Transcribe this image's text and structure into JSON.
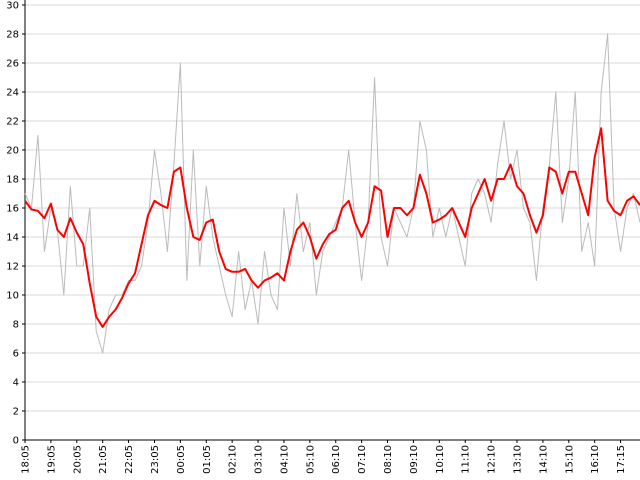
{
  "chart_data": {
    "type": "line",
    "categories": [
      "18:05",
      null,
      null,
      null,
      "19:05",
      null,
      null,
      null,
      "20:05",
      null,
      null,
      null,
      "21:05",
      null,
      null,
      null,
      "22:05",
      null,
      null,
      null,
      "23:05",
      null,
      null,
      null,
      "00:05",
      null,
      null,
      null,
      "01:05",
      null,
      null,
      null,
      "02:10",
      null,
      null,
      null,
      "03:10",
      null,
      null,
      null,
      "04:10",
      null,
      null,
      null,
      "05:10",
      null,
      null,
      null,
      "06:10",
      null,
      null,
      null,
      "07:10",
      null,
      null,
      null,
      "08:10",
      null,
      null,
      null,
      "09:10",
      null,
      null,
      null,
      "10:10",
      null,
      null,
      null,
      "11:10",
      null,
      null,
      null,
      "12:10",
      null,
      null,
      null,
      "13:10",
      null,
      null,
      null,
      "14:10",
      null,
      null,
      null,
      "15:10",
      null,
      null,
      null,
      "16:10",
      null,
      null,
      null,
      "17:15",
      null,
      null,
      null
    ],
    "series": [
      {
        "color": "#bbbbbb",
        "values": [
          17,
          16,
          21,
          13,
          16,
          14.5,
          10,
          17.5,
          12,
          12,
          16,
          7.5,
          6,
          9,
          10,
          10,
          11,
          11,
          12,
          15,
          20,
          17,
          13,
          19,
          26,
          11,
          20,
          12,
          17.5,
          14,
          12,
          10,
          8.5,
          13,
          9,
          11,
          8,
          13,
          10,
          9,
          16,
          12,
          17,
          13,
          15,
          10,
          13,
          14,
          15,
          16,
          20,
          15,
          11,
          15,
          25,
          14,
          12,
          16,
          15,
          14,
          16,
          22,
          20,
          14,
          16,
          14,
          16,
          14,
          12,
          17,
          18,
          17,
          15,
          19,
          22,
          18,
          20,
          16,
          15,
          11,
          16,
          19,
          24,
          15,
          18,
          24,
          13,
          15,
          12,
          24,
          28,
          16,
          13,
          16,
          17,
          15
        ]
      },
      {
        "color": "#ff0000",
        "values": [
          16.5,
          15.9,
          15.8,
          15.3,
          16.3,
          14.5,
          14,
          15.3,
          14.3,
          13.5,
          10.8,
          8.5,
          7.8,
          8.5,
          9,
          9.8,
          10.8,
          11.5,
          13.5,
          15.5,
          16.5,
          16.2,
          16,
          18.5,
          18.8,
          16,
          14,
          13.8,
          15,
          15.2,
          13,
          11.8,
          11.6,
          11.6,
          11.8,
          11,
          10.5,
          11,
          11.2,
          11.5,
          11,
          13,
          14.5,
          15,
          14,
          12.5,
          13.5,
          14.2,
          14.5,
          16,
          16.5,
          15,
          14,
          15,
          17.5,
          17.2,
          14,
          16,
          16,
          15.5,
          16,
          18.3,
          17,
          15,
          15.2,
          15.5,
          16,
          15,
          14,
          16,
          17,
          18,
          16.5,
          18,
          18,
          19,
          17.5,
          17,
          15.5,
          14.3,
          15.5,
          18.8,
          18.5,
          17,
          18.5,
          18.5,
          17,
          15.5,
          19.5,
          21.5,
          16.5,
          15.8,
          15.5,
          16.5,
          16.8,
          16.2
        ]
      }
    ],
    "ylim": [
      0,
      30
    ],
    "yticks": [
      0,
      2,
      4,
      6,
      8,
      10,
      12,
      14,
      16,
      18,
      20,
      22,
      24,
      26,
      28,
      30
    ],
    "grid": true
  }
}
